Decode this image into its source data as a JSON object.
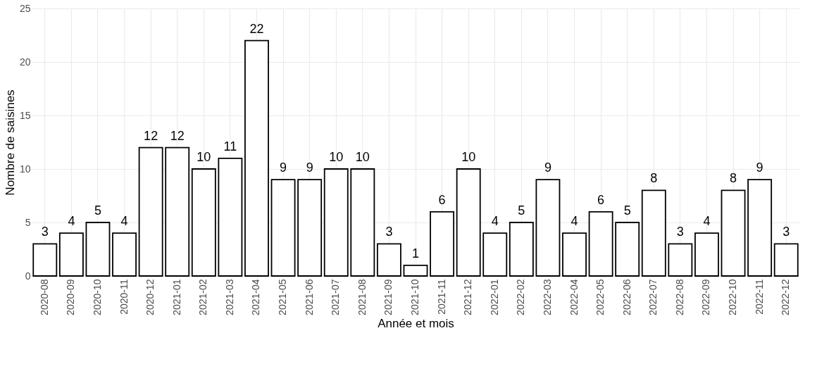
{
  "chart_data": {
    "type": "bar",
    "xlabel": "Année et mois",
    "ylabel": "Nombre de saisines",
    "categories": [
      "2020-08",
      "2020-09",
      "2020-10",
      "2020-11",
      "2020-12",
      "2021-01",
      "2021-02",
      "2021-03",
      "2021-04",
      "2021-05",
      "2021-06",
      "2021-07",
      "2021-08",
      "2021-09",
      "2021-10",
      "2021-11",
      "2021-12",
      "2022-01",
      "2022-02",
      "2022-03",
      "2022-04",
      "2022-05",
      "2022-06",
      "2022-07",
      "2022-08",
      "2022-09",
      "2022-10",
      "2022-11",
      "2022-12"
    ],
    "values": [
      3,
      4,
      5,
      4,
      12,
      12,
      10,
      11,
      22,
      9,
      9,
      10,
      10,
      3,
      1,
      6,
      10,
      4,
      5,
      9,
      4,
      6,
      5,
      8,
      3,
      4,
      8,
      9,
      3
    ],
    "color": "#ffffff",
    "ylim": [
      0,
      25
    ],
    "yticks": [
      0,
      5,
      10,
      15,
      20,
      25
    ],
    "grid": true,
    "data_labels": true
  }
}
